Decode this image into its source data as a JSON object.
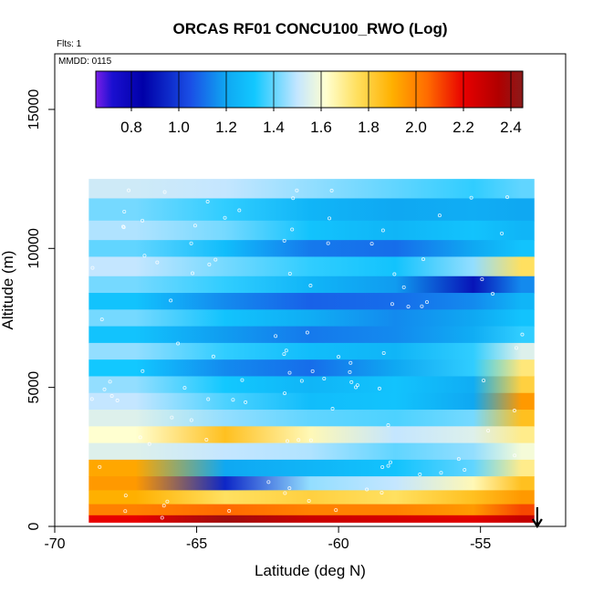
{
  "chart_data": {
    "type": "heatmap",
    "title": "ORCAS RF01 CONCU100_RWO (Log)",
    "annotations": [
      "Flts: 1",
      "MMDD: 0115"
    ],
    "xlabel": "Latitude (deg N)",
    "ylabel": "Altitude (m)",
    "xlim": [
      -70,
      -52
    ],
    "ylim": [
      0,
      17000
    ],
    "x_ticks": [
      -70,
      -65,
      -60,
      -55
    ],
    "x_tick_labels": [
      "-70",
      "-65",
      "-60",
      "-55"
    ],
    "y_ticks": [
      0,
      5000,
      10000,
      15000
    ],
    "y_tick_labels": [
      "0",
      "5000",
      "10000",
      "15000"
    ],
    "colorbar": {
      "min": 0.65,
      "max": 2.45,
      "ticks": [
        0.8,
        1.0,
        1.2,
        1.4,
        1.6,
        1.8,
        2.0,
        2.2,
        2.4
      ],
      "tick_labels": [
        "0.8",
        "1.0",
        "1.2",
        "1.4",
        "1.6",
        "1.8",
        "2.0",
        "2.2",
        "2.4"
      ],
      "dividers": [
        0.8,
        1.0,
        1.2,
        1.4,
        1.6,
        1.8,
        2.0,
        2.2,
        2.4
      ],
      "colors": [
        "#7a1fe8",
        "#1a0fd0",
        "#0000a8",
        "#1a4fe6",
        "#0fa8f2",
        "#12c8ff",
        "#c4e6ff",
        "#ffffd0",
        "#ffe060",
        "#ffb000",
        "#ff6a00",
        "#e80000",
        "#b00000",
        "#8b1a1a"
      ],
      "color_stops": [
        0.65,
        0.72,
        0.85,
        1.05,
        1.2,
        1.32,
        1.5,
        1.62,
        1.75,
        1.9,
        2.05,
        2.2,
        2.35,
        2.45
      ]
    },
    "grid": false,
    "legend": "top",
    "data_extent": {
      "lat_min": -68.8,
      "lat_max": -53.1,
      "alt_min": 200,
      "alt_max": 12500
    },
    "layers": [
      {
        "alt": [
          11800,
          12500
        ],
        "values": [
          1.52,
          1.5,
          1.45,
          1.4,
          1.35,
          1.4
        ]
      },
      {
        "alt": [
          11000,
          11800
        ],
        "values": [
          1.42,
          1.35,
          1.25,
          1.2,
          1.22,
          1.2
        ]
      },
      {
        "alt": [
          10300,
          11000
        ],
        "values": [
          1.48,
          1.42,
          1.3,
          1.25,
          1.3,
          1.25
        ]
      },
      {
        "alt": [
          9700,
          10300
        ],
        "values": [
          1.4,
          1.28,
          1.12,
          1.1,
          1.2,
          1.3
        ]
      },
      {
        "alt": [
          9000,
          9700
        ],
        "values": [
          1.5,
          1.42,
          1.35,
          1.3,
          1.45,
          1.75
        ]
      },
      {
        "alt": [
          8400,
          9000
        ],
        "values": [
          1.42,
          1.35,
          1.25,
          1.18,
          0.9,
          1.15
        ]
      },
      {
        "alt": [
          7800,
          8400
        ],
        "values": [
          1.3,
          1.15,
          1.08,
          1.1,
          1.15,
          1.25
        ]
      },
      {
        "alt": [
          7200,
          7800
        ],
        "values": [
          1.42,
          1.3,
          1.22,
          1.15,
          1.2,
          1.3
        ]
      },
      {
        "alt": [
          6600,
          7200
        ],
        "values": [
          1.3,
          1.18,
          1.12,
          1.15,
          1.22,
          1.35
        ]
      },
      {
        "alt": [
          6000,
          6600
        ],
        "values": [
          1.45,
          1.35,
          1.28,
          1.25,
          1.35,
          1.55
        ]
      },
      {
        "alt": [
          5400,
          6000
        ],
        "values": [
          1.32,
          1.15,
          1.1,
          1.2,
          1.35,
          1.72
        ]
      },
      {
        "alt": [
          4800,
          5400
        ],
        "values": [
          1.45,
          1.32,
          1.25,
          1.3,
          1.22,
          1.8
        ]
      },
      {
        "alt": [
          4200,
          4800
        ],
        "values": [
          1.5,
          1.38,
          1.28,
          1.3,
          1.2,
          1.95
        ]
      },
      {
        "alt": [
          3600,
          4200
        ],
        "values": [
          1.55,
          1.45,
          1.4,
          1.38,
          1.42,
          1.85
        ]
      },
      {
        "alt": [
          3000,
          3600
        ],
        "values": [
          1.62,
          1.85,
          1.65,
          1.5,
          1.55,
          1.7
        ]
      },
      {
        "alt": [
          2400,
          3000
        ],
        "values": [
          1.55,
          1.5,
          1.48,
          1.4,
          1.45,
          1.6
        ]
      },
      {
        "alt": [
          1800,
          2400
        ],
        "values": [
          1.92,
          1.2,
          1.25,
          1.3,
          1.4,
          1.7
        ]
      },
      {
        "alt": [
          1300,
          1800
        ],
        "values": [
          1.95,
          0.95,
          1.45,
          1.5,
          1.65,
          1.85
        ]
      },
      {
        "alt": [
          800,
          1300
        ],
        "values": [
          1.9,
          1.75,
          1.8,
          1.75,
          1.85,
          1.95
        ]
      },
      {
        "alt": [
          400,
          800
        ],
        "values": [
          2.0,
          2.05,
          2.0,
          2.0,
          1.95,
          2.1
        ]
      },
      {
        "alt": [
          150,
          400
        ],
        "values": [
          2.2,
          2.4,
          2.28,
          2.25,
          2.22,
          2.3
        ]
      }
    ],
    "layer_lat_bins": [
      -68.8,
      -65.5,
      -62.5,
      -59.5,
      -56.5,
      -54.0,
      -53.1
    ],
    "arrow_latitude": -53.0
  }
}
